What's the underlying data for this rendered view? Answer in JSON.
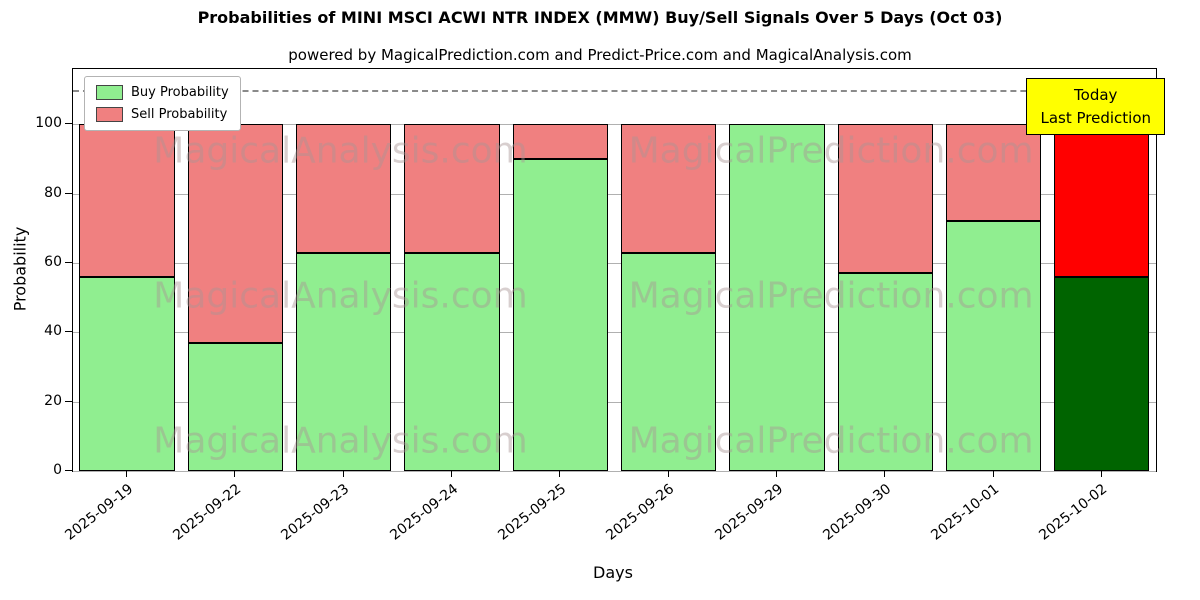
{
  "title": "Probabilities of MINI MSCI ACWI NTR INDEX (MMW) Buy/Sell Signals Over 5 Days (Oct 03)",
  "subtitle": "powered by MagicalPrediction.com and Predict-Price.com and MagicalAnalysis.com",
  "legend": {
    "buy_label": "Buy Probability",
    "sell_label": "Sell Probability"
  },
  "annotation": {
    "line1": "Today",
    "line2": "Last Prediction"
  },
  "watermark": {
    "left_text": "MagicalAnalysis.com",
    "right_text": "MagicalPrediction.com"
  },
  "colors": {
    "buy": "#90ee90",
    "sell": "#f08080",
    "last_buy": "#006400",
    "last_sell": "#ff0000",
    "annotation_bg": "#ffff00",
    "grid": "#b0b0b0",
    "dashed": "#8a8a8a"
  },
  "chart_data": {
    "type": "bar",
    "stacked": true,
    "title": "Probabilities of MINI MSCI ACWI NTR INDEX (MMW) Buy/Sell Signals Over 5 Days (Oct 03)",
    "xlabel": "Days",
    "ylabel": "Probability",
    "categories": [
      "2025-09-19",
      "2025-09-22",
      "2025-09-23",
      "2025-09-24",
      "2025-09-25",
      "2025-09-26",
      "2025-09-29",
      "2025-09-30",
      "2025-10-01",
      "2025-10-02"
    ],
    "series": [
      {
        "name": "Buy Probability",
        "values": [
          56,
          37,
          63,
          63,
          90,
          63,
          100,
          57,
          72,
          56
        ]
      },
      {
        "name": "Sell Probability",
        "values": [
          44,
          63,
          37,
          37,
          10,
          37,
          0,
          43,
          28,
          44
        ]
      }
    ],
    "yticks": [
      0,
      20,
      40,
      60,
      80,
      100
    ],
    "ylim": [
      0,
      116
    ],
    "dashed_line_y": 110,
    "legend_position": "upper left",
    "grid": "horizontal",
    "note": "Last bar (2025-10-02) drawn with dark green buy and bright red sell colors"
  }
}
